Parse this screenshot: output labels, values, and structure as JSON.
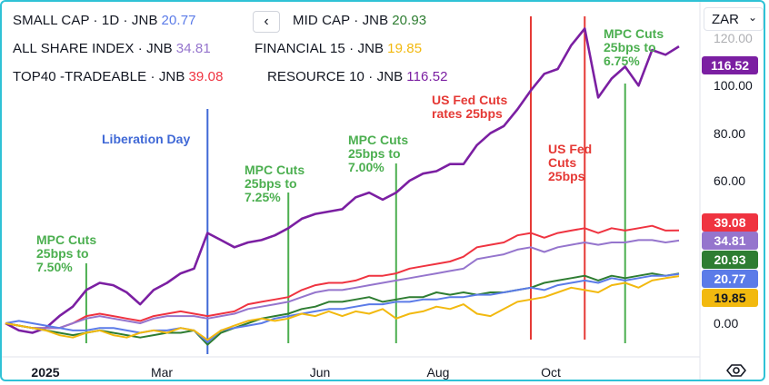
{
  "legend": [
    [
      {
        "label": "SMALL CAP · 1D · JNB",
        "value": "20.77",
        "color": "#5b7be8"
      },
      {
        "label": "MID CAP · JNB",
        "value": "20.93",
        "color": "#2e7d32"
      }
    ],
    [
      {
        "label": "ALL SHARE INDEX · JNB",
        "value": "34.81",
        "color": "#9575cd"
      },
      {
        "label": "FINANCIAL 15 · JNB",
        "value": "19.85",
        "color": "#f2b90f"
      }
    ],
    [
      {
        "label": "TOP40 -TRADEABLE · JNB",
        "value": "39.08",
        "color": "#ef3340"
      },
      {
        "label": "RESOURCE 10 · JNB",
        "value": "116.52",
        "color": "#7b1fa2"
      }
    ]
  ],
  "collapse_icon": "chevron-left-icon",
  "collapse_glyph": "‹",
  "currency": {
    "label": "ZAR",
    "icon": "chevron-down-icon",
    "glyph": "⌄"
  },
  "settings_icon": "eye-icon",
  "chart_data": {
    "type": "line",
    "x_labels": [
      "2025",
      "Mar",
      "Jun",
      "Aug",
      "Oct"
    ],
    "x": [
      0,
      1,
      2,
      3,
      4,
      5,
      6,
      7,
      8,
      9,
      10,
      11,
      12,
      13,
      14,
      15,
      16,
      17,
      18,
      19,
      20,
      21,
      22,
      23,
      24,
      25,
      26,
      27,
      28,
      29,
      30,
      31,
      32,
      33,
      34,
      35,
      36,
      37,
      38,
      39,
      40,
      41,
      42,
      43,
      44,
      45,
      46,
      47,
      48,
      49,
      50
    ],
    "y_ticks": [
      "0.00",
      "20.00",
      "40.00",
      "60.00",
      "80.00",
      "100.00",
      "120.00"
    ],
    "ylim": [
      -10,
      130
    ],
    "series": [
      {
        "name": "RESOURCE 10",
        "color": "#7b1fa2",
        "last": "116.52",
        "values": [
          0,
          -3,
          -4,
          -2,
          3,
          7,
          14,
          17,
          16,
          13,
          8,
          14,
          17,
          21,
          23,
          38,
          35,
          32,
          34,
          35,
          37,
          40,
          44,
          46,
          47,
          48,
          53,
          55,
          52,
          55,
          60,
          63,
          64,
          67,
          67,
          75,
          80,
          83,
          90,
          98,
          105,
          107,
          117,
          124,
          95,
          103,
          108,
          100,
          115,
          113,
          116.52
        ]
      },
      {
        "name": "TOP40 -TRADEABLE",
        "color": "#ef3340",
        "last": "39.08",
        "values": [
          0,
          -1,
          -2,
          -2,
          -2,
          0,
          3,
          4,
          3,
          2,
          1,
          3,
          4,
          5,
          4,
          3,
          4,
          5,
          8,
          9,
          10,
          11,
          14,
          16,
          17,
          17,
          18,
          20,
          20,
          21,
          23,
          24,
          25,
          26,
          28,
          32,
          33,
          34,
          37,
          38,
          36,
          38,
          39,
          40,
          38,
          40,
          39,
          40,
          41,
          39,
          39.08
        ]
      },
      {
        "name": "ALL SHARE INDEX",
        "color": "#9575cd",
        "last": "34.81",
        "values": [
          0,
          -1,
          -2,
          -2,
          -2,
          0,
          2,
          3,
          2,
          1,
          0,
          2,
          3,
          3,
          3,
          2,
          3,
          4,
          6,
          7,
          8,
          9,
          11,
          13,
          14,
          14,
          15,
          16,
          17,
          18,
          19,
          20,
          21,
          22,
          23,
          27,
          28,
          29,
          31,
          32,
          30,
          32,
          33,
          34,
          33,
          34,
          34,
          35,
          35,
          34,
          34.81
        ]
      },
      {
        "name": "MID CAP",
        "color": "#2e7d32",
        "last": "20.93",
        "values": [
          0,
          -1,
          -2,
          -3,
          -4,
          -5,
          -4,
          -3,
          -4,
          -5,
          -6,
          -5,
          -4,
          -4,
          -3,
          -9,
          -4,
          -2,
          0,
          2,
          3,
          4,
          6,
          7,
          9,
          9,
          10,
          11,
          9,
          10,
          11,
          11,
          13,
          12,
          13,
          12,
          13,
          13,
          14,
          15,
          17,
          18,
          19,
          20,
          18,
          20,
          19,
          20,
          21,
          20,
          20.93
        ]
      },
      {
        "name": "SMALL CAP",
        "color": "#5b7be8",
        "last": "20.77",
        "values": [
          0,
          1,
          0,
          -1,
          -2,
          -3,
          -3,
          -2,
          -2,
          -3,
          -4,
          -3,
          -3,
          -2,
          -3,
          -8,
          -3,
          -2,
          -1,
          0,
          2,
          3,
          4,
          5,
          6,
          6,
          7,
          8,
          8,
          9,
          9,
          10,
          10,
          11,
          11,
          12,
          12,
          13,
          14,
          15,
          14,
          16,
          17,
          18,
          17,
          19,
          18,
          19,
          20,
          20,
          20.77
        ]
      },
      {
        "name": "FINANCIAL 15",
        "color": "#f2b90f",
        "last": "19.85",
        "values": [
          0,
          -1,
          -2,
          -3,
          -5,
          -6,
          -4,
          -3,
          -5,
          -6,
          -4,
          -3,
          -4,
          -2,
          -3,
          -7,
          -3,
          -1,
          1,
          2,
          1,
          2,
          4,
          3,
          5,
          3,
          5,
          4,
          6,
          2,
          4,
          5,
          7,
          6,
          8,
          4,
          3,
          6,
          9,
          10,
          11,
          13,
          15,
          14,
          13,
          16,
          17,
          15,
          18,
          19,
          19.85
        ]
      }
    ],
    "annotations": [
      {
        "text": "MPC Cuts\n25bps to\n7.50%",
        "color": "#4caf50",
        "line_color": "#4caf50",
        "x": 6
      },
      {
        "text": "Liberation Day",
        "color": "#3f68d6",
        "line_color": "#3f68d6",
        "x": 15
      },
      {
        "text": "MPC Cuts\n25bps to\n7.25%",
        "color": "#4caf50",
        "line_color": "#4caf50",
        "x": 21
      },
      {
        "text": "MPC Cuts\n25bps to\n7.00%",
        "color": "#4caf50",
        "line_color": "#4caf50",
        "x": 29
      },
      {
        "text": "US Fed Cuts\nrates 25bps",
        "color": "#e53935",
        "line_color": "#e53935",
        "x": 39
      },
      {
        "text": "US Fed\nCuts\n25bps",
        "color": "#e53935",
        "line_color": "#e53935",
        "x": 43
      },
      {
        "text": "MPC Cuts\n25bps to\n6.75%",
        "color": "#4caf50",
        "line_color": "#4caf50",
        "x": 46
      }
    ]
  }
}
